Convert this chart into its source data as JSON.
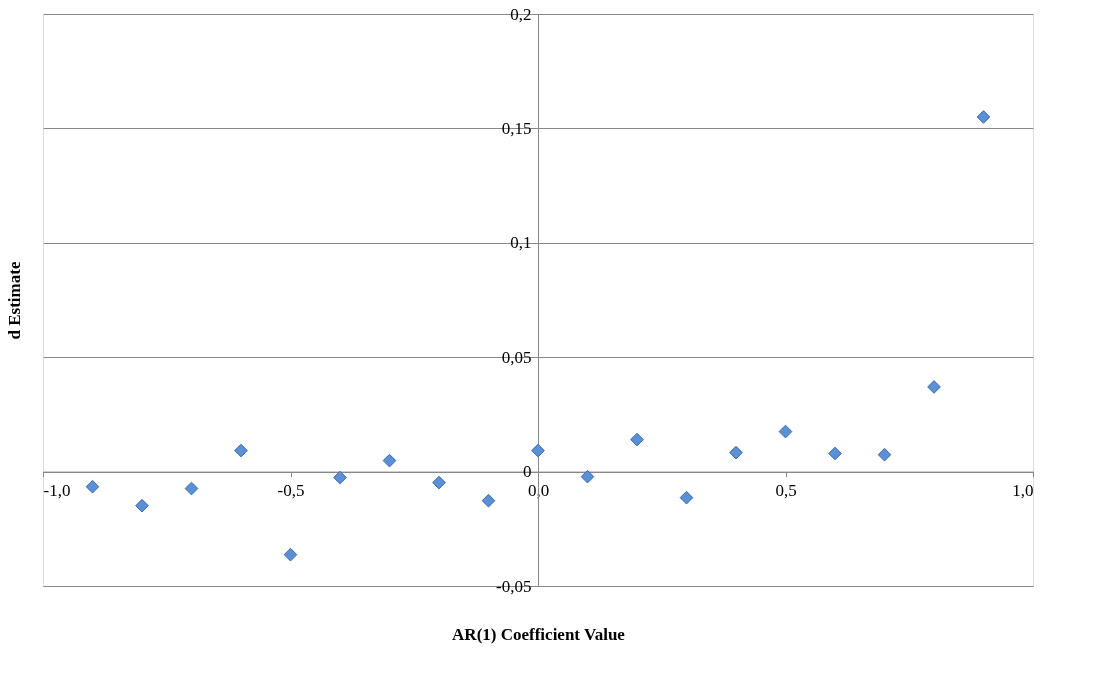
{
  "chart_data": {
    "type": "scatter",
    "xlabel": "AR(1) Coefficient Value",
    "ylabel": "d Estimate",
    "x": [
      -0.9,
      -0.8,
      -0.7,
      -0.6,
      -0.5,
      -0.4,
      -0.3,
      -0.2,
      -0.1,
      0.0,
      0.1,
      0.2,
      0.3,
      0.4,
      0.5,
      0.6,
      0.7,
      0.8,
      0.9
    ],
    "series": [
      {
        "color": "#5b8fd6",
        "values": [
          -0.0066,
          -0.0149,
          -0.0074,
          0.0092,
          -0.0363,
          -0.0026,
          0.0048,
          -0.0048,
          -0.0127,
          0.0092,
          -0.0022,
          0.014,
          -0.0114,
          0.0083,
          0.0175,
          0.0079,
          0.0074,
          0.037,
          0.155
        ]
      }
    ],
    "xlim": [
      -1.0,
      1.0
    ],
    "ylim": [
      -0.05,
      0.2
    ],
    "xticks": [
      {
        "value": -1.0,
        "label": "-1,0"
      },
      {
        "value": -0.5,
        "label": "-0,5"
      },
      {
        "value": 0.0,
        "label": "0,0"
      },
      {
        "value": 0.5,
        "label": "0,5"
      },
      {
        "value": 1.0,
        "label": "1,0"
      }
    ],
    "yticks": [
      {
        "value": -0.05,
        "label": "-0,05"
      },
      0,
      {
        "value": 0.05,
        "label": "0,05"
      },
      {
        "value": 0.1,
        "label": "0,1"
      },
      {
        "value": 0.15,
        "label": "0,15"
      },
      {
        "value": 0.2,
        "label": "0,2"
      }
    ],
    "grid": "y",
    "marker": "diamond",
    "legend": false
  }
}
